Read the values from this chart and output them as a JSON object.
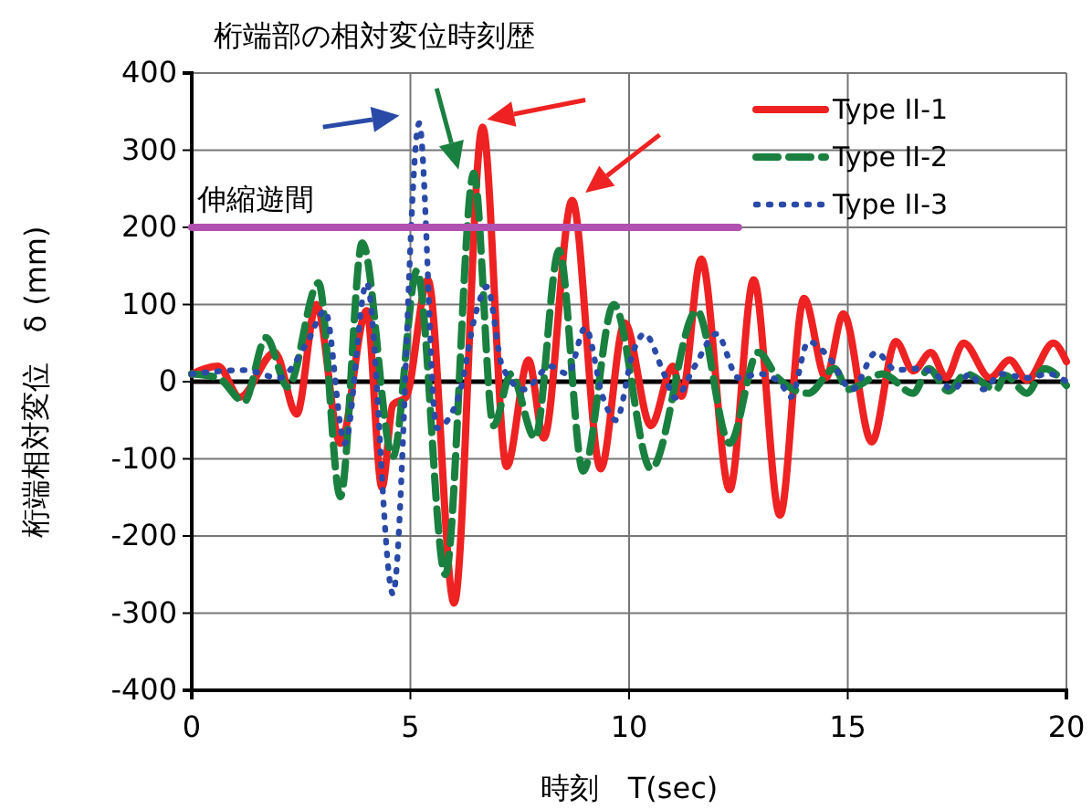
{
  "chart_data": {
    "type": "line",
    "title": "桁端部の相対変位時刻歴",
    "xlabel": "時刻　T(sec)",
    "ylabel": "桁端相対変位　δ (mm)",
    "xlim": [
      0,
      20
    ],
    "xticks": [
      0,
      5,
      10,
      15,
      20
    ],
    "ylim": [
      -400,
      400
    ],
    "yticks": [
      -400,
      -300,
      -200,
      -100,
      0,
      100,
      200,
      300,
      400
    ],
    "grid": true,
    "legend": "top right",
    "ref_lines": [
      {
        "axis": "y",
        "value": 0,
        "color": "#000000"
      }
    ],
    "annotations": [
      {
        "text": "伸縮遊間",
        "x": 0,
        "y": 200
      }
    ],
    "series": [
      {
        "name": "Type II-1",
        "color": "#ee2222",
        "line_style": "solid",
        "x": [
          0,
          0.6,
          1.1,
          1.9,
          2.4,
          2.85,
          3.4,
          4.0,
          4.35,
          4.6,
          4.9,
          5.4,
          6.0,
          6.65,
          7.2,
          7.7,
          8.05,
          8.7,
          9.35,
          9.9,
          10.5,
          11.0,
          11.2,
          11.65,
          12.3,
          12.85,
          13.45,
          14.0,
          14.5,
          14.9,
          15.55,
          16.1,
          16.5,
          16.9,
          17.25,
          17.65,
          18.25,
          18.7,
          19.1,
          19.7,
          20
        ],
        "values": [
          10,
          20,
          -20,
          38,
          -42,
          100,
          -80,
          92,
          -137,
          -30,
          -20,
          132,
          -287,
          330,
          -110,
          28,
          -73,
          235,
          -113,
          76,
          -57,
          20,
          -19,
          159,
          -140,
          132,
          -173,
          108,
          5,
          88,
          -78,
          52,
          14,
          38,
          5,
          50,
          5,
          28,
          2,
          50,
          26
        ]
      },
      {
        "name": "Type II-2",
        "color": "#1a8040",
        "line_style": "dashed",
        "x": [
          0,
          0.6,
          1.2,
          1.7,
          2.2,
          2.9,
          3.4,
          3.9,
          4.6,
          5.15,
          5.8,
          6.45,
          6.9,
          7.3,
          7.85,
          8.4,
          8.95,
          9.65,
          10.5,
          11.55,
          12.3,
          12.95,
          13.4,
          14.1,
          14.7,
          15.0,
          15.8,
          16.5,
          16.85,
          17.3,
          17.7,
          18.4,
          18.6,
          19.1,
          19.5,
          20
        ],
        "values": [
          10,
          5,
          -26,
          57,
          -7,
          128,
          -149,
          180,
          -97,
          144,
          -250,
          270,
          -57,
          10,
          -73,
          170,
          -116,
          100,
          -113,
          92,
          -80,
          38,
          5,
          -15,
          17,
          -10,
          10,
          -15,
          17,
          -12,
          10,
          -10,
          8,
          -15,
          17,
          -5
        ]
      },
      {
        "name": "Type II-3",
        "color": "#2a4aa8",
        "line_style": "dotted",
        "x": [
          0,
          1.2,
          2.0,
          2.65,
          3.05,
          3.5,
          4.0,
          4.6,
          5.2,
          5.6,
          6.1,
          6.5,
          6.75,
          7.1,
          7.6,
          8.2,
          8.6,
          9.0,
          9.4,
          9.7,
          10.1,
          10.35,
          10.8,
          11.05,
          11.5,
          12.0,
          12.5,
          13.0,
          13.5,
          13.7,
          14.1,
          14.55,
          15.1,
          15.65,
          16.1,
          16.6,
          17.0,
          17.4,
          17.8,
          18.1,
          18.5,
          19.1,
          19.6,
          20
        ],
        "values": [
          10,
          15,
          5,
          52,
          92,
          -80,
          128,
          -275,
          335,
          -60,
          -20,
          90,
          123,
          20,
          -10,
          20,
          10,
          70,
          -20,
          -50,
          40,
          62,
          10,
          -21,
          20,
          62,
          5,
          10,
          -5,
          -20,
          52,
          33,
          -10,
          38,
          15,
          17,
          10,
          -10,
          10,
          -10,
          10,
          5,
          10,
          0
        ]
      },
      {
        "type": "line",
        "color": "#b050b0",
        "line_style": "solid",
        "x": [
          0,
          12.5
        ],
        "values": [
          200,
          200
        ]
      }
    ]
  }
}
